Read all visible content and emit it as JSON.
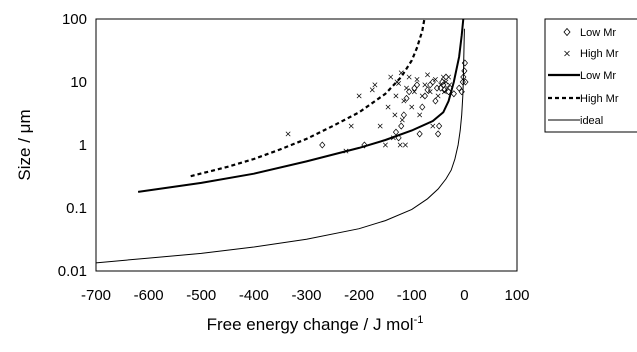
{
  "chart_data": {
    "type": "scatter",
    "xlabel": "Free energy change / J mol",
    "xlabel_superscript": "-1",
    "ylabel": "Size / μm",
    "xlim": [
      -700,
      100
    ],
    "ylim": [
      0.01,
      100
    ],
    "y_scale": "log",
    "grid": false,
    "legend_position": "right, clipped",
    "x_ticks": [
      "-700",
      "-600",
      "-500",
      "-400",
      "-300",
      "-200",
      "-100",
      "0",
      "100"
    ],
    "y_ticks": [
      "0.01",
      "0.1",
      "1",
      "10",
      "100"
    ],
    "series": [
      {
        "name": "Low Mr",
        "kind": "points",
        "marker": "diamond",
        "points": [
          [
            -270,
            1.0
          ],
          [
            -190,
            1.0
          ],
          [
            -130,
            1.6
          ],
          [
            -125,
            1.3
          ],
          [
            -120,
            2.0
          ],
          [
            -115,
            3.0
          ],
          [
            -110,
            5.5
          ],
          [
            -105,
            7.0
          ],
          [
            -95,
            8.0
          ],
          [
            -90,
            9.0
          ],
          [
            -85,
            1.5
          ],
          [
            -80,
            4.0
          ],
          [
            -75,
            6.0
          ],
          [
            -70,
            7.5
          ],
          [
            -65,
            9.0
          ],
          [
            -60,
            10.0
          ],
          [
            -55,
            5.0
          ],
          [
            -52,
            8.0
          ],
          [
            -50,
            1.5
          ],
          [
            -48,
            2.0
          ],
          [
            -45,
            8.0
          ],
          [
            -42,
            10.0
          ],
          [
            -40,
            9.0
          ],
          [
            -38,
            7.5
          ],
          [
            -35,
            12.0
          ],
          [
            -30,
            7.0
          ],
          [
            -20,
            6.5
          ],
          [
            -10,
            8.0
          ],
          [
            -5,
            7.0
          ],
          [
            -3,
            10.0
          ],
          [
            -2,
            12.0
          ],
          [
            0,
            15.0
          ],
          [
            1,
            20.0
          ],
          [
            2,
            10.0
          ]
        ]
      },
      {
        "name": "High Mr",
        "kind": "points",
        "marker": "cross",
        "points": [
          [
            -335,
            1.5
          ],
          [
            -225,
            0.8
          ],
          [
            -215,
            2.0
          ],
          [
            -200,
            6.0
          ],
          [
            -175,
            7.5
          ],
          [
            -170,
            9.0
          ],
          [
            -160,
            2.0
          ],
          [
            -150,
            1.0
          ],
          [
            -145,
            4.0
          ],
          [
            -140,
            12.0
          ],
          [
            -135,
            1.3
          ],
          [
            -132,
            3.0
          ],
          [
            -130,
            6.0
          ],
          [
            -128,
            10.0
          ],
          [
            -125,
            9.5
          ],
          [
            -122,
            1.0
          ],
          [
            -120,
            14.0
          ],
          [
            -118,
            2.5
          ],
          [
            -115,
            5.0
          ],
          [
            -112,
            1.0
          ],
          [
            -110,
            8.0
          ],
          [
            -105,
            12.0
          ],
          [
            -100,
            4.0
          ],
          [
            -95,
            7.0
          ],
          [
            -90,
            11.0
          ],
          [
            -85,
            3.0
          ],
          [
            -80,
            6.0
          ],
          [
            -75,
            9.0
          ],
          [
            -70,
            13.0
          ],
          [
            -65,
            7.0
          ],
          [
            -60,
            2.0
          ],
          [
            -55,
            11.0
          ],
          [
            -50,
            6.0
          ],
          [
            -45,
            9.0
          ],
          [
            -40,
            12.0
          ],
          [
            -38,
            7.0
          ],
          [
            -35,
            10.0
          ],
          [
            -32,
            8.0
          ],
          [
            -30,
            12.0
          ],
          [
            -28,
            9.0
          ]
        ]
      },
      {
        "name": "Low Mr",
        "kind": "line",
        "style": "solid-thick",
        "points": [
          [
            -620,
            0.18
          ],
          [
            -500,
            0.25
          ],
          [
            -400,
            0.35
          ],
          [
            -300,
            0.55
          ],
          [
            -200,
            0.9
          ],
          [
            -150,
            1.2
          ],
          [
            -100,
            1.7
          ],
          [
            -60,
            2.4
          ],
          [
            -40,
            3.3
          ],
          [
            -30,
            5.0
          ],
          [
            -20,
            10.0
          ],
          [
            -10,
            25.0
          ],
          [
            -5,
            55.0
          ],
          [
            -2,
            100.0
          ]
        ]
      },
      {
        "name": "High Mr",
        "kind": "line",
        "style": "dashed",
        "points": [
          [
            -520,
            0.32
          ],
          [
            -450,
            0.45
          ],
          [
            -400,
            0.6
          ],
          [
            -350,
            0.85
          ],
          [
            -300,
            1.25
          ],
          [
            -250,
            2.0
          ],
          [
            -200,
            3.3
          ],
          [
            -150,
            6.5
          ],
          [
            -120,
            12.0
          ],
          [
            -100,
            22.0
          ],
          [
            -90,
            35.0
          ],
          [
            -80,
            65.0
          ],
          [
            -76,
            100.0
          ]
        ]
      },
      {
        "name": "ideal",
        "kind": "line",
        "style": "solid-thin",
        "points": [
          [
            -720,
            0.013
          ],
          [
            -600,
            0.016
          ],
          [
            -500,
            0.019
          ],
          [
            -400,
            0.024
          ],
          [
            -300,
            0.032
          ],
          [
            -200,
            0.047
          ],
          [
            -150,
            0.063
          ],
          [
            -100,
            0.095
          ],
          [
            -70,
            0.14
          ],
          [
            -50,
            0.2
          ],
          [
            -35,
            0.29
          ],
          [
            -25,
            0.4
          ],
          [
            -18,
            0.6
          ],
          [
            -12,
            1.0
          ],
          [
            -8,
            1.7
          ],
          [
            -5,
            3.0
          ],
          [
            -3,
            6.0
          ],
          [
            -2,
            10.0
          ],
          [
            -1,
            25.0
          ],
          [
            0,
            70.0
          ]
        ]
      }
    ]
  }
}
